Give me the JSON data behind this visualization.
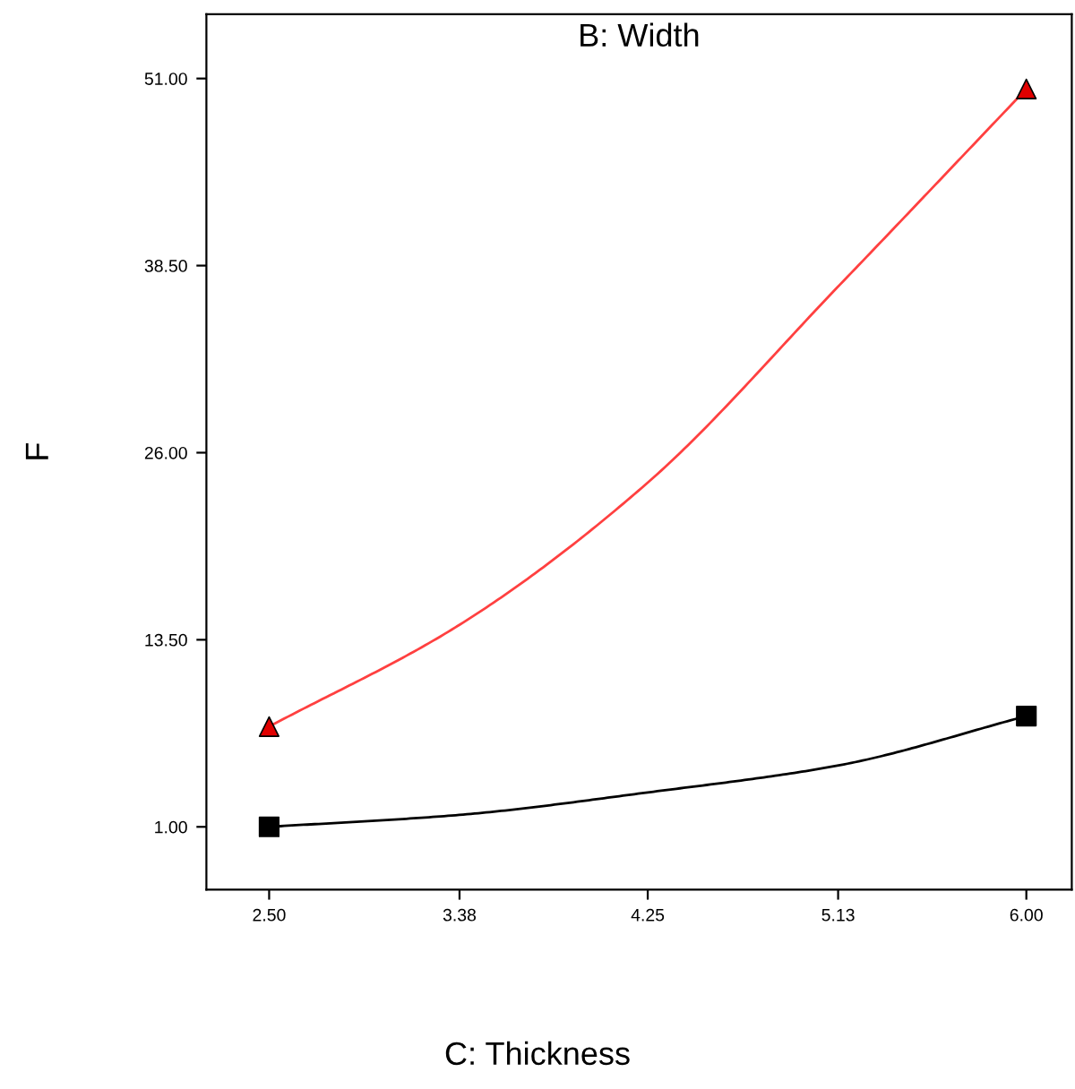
{
  "chart_data": {
    "type": "line",
    "title": "B: Width",
    "xlabel": "C: Thickness",
    "ylabel": "F",
    "xlim": [
      2.21,
      6.21
    ],
    "ylim": [
      -3.2,
      55.3
    ],
    "xticks": [
      {
        "value": 2.5,
        "label": "2.50"
      },
      {
        "value": 3.38,
        "label": "3.38"
      },
      {
        "value": 4.25,
        "label": "4.25"
      },
      {
        "value": 5.13,
        "label": "5.13"
      },
      {
        "value": 6.0,
        "label": "6.00"
      }
    ],
    "yticks": [
      {
        "value": 1,
        "label": "1.00"
      },
      {
        "value": 13.5,
        "label": "13.50"
      },
      {
        "value": 26,
        "label": "26.00"
      },
      {
        "value": 38.5,
        "label": "38.50"
      },
      {
        "value": 51,
        "label": "51.00"
      }
    ],
    "grid": false,
    "legend": false,
    "series": [
      {
        "color": "#ff4040",
        "x": [
          2.5,
          3.38,
          4.25,
          5.13,
          6.0
        ],
        "values": [
          7.7,
          14.5,
          24.0,
          37.1,
          50.3
        ]
      },
      {
        "color": "#000000",
        "x": [
          2.5,
          3.38,
          4.25,
          5.13,
          6.0
        ],
        "values": [
          1.0,
          1.8,
          3.3,
          5.1,
          8.4
        ]
      },
      {
        "type": "scatter",
        "marker": "triangle",
        "color": "#e00000",
        "x": [
          2.5,
          6.0
        ],
        "values": [
          7.7,
          50.3
        ]
      },
      {
        "type": "scatter",
        "marker": "square",
        "color": "#000000",
        "x": [
          2.5,
          6.0
        ],
        "values": [
          1.0,
          8.4
        ]
      }
    ]
  }
}
